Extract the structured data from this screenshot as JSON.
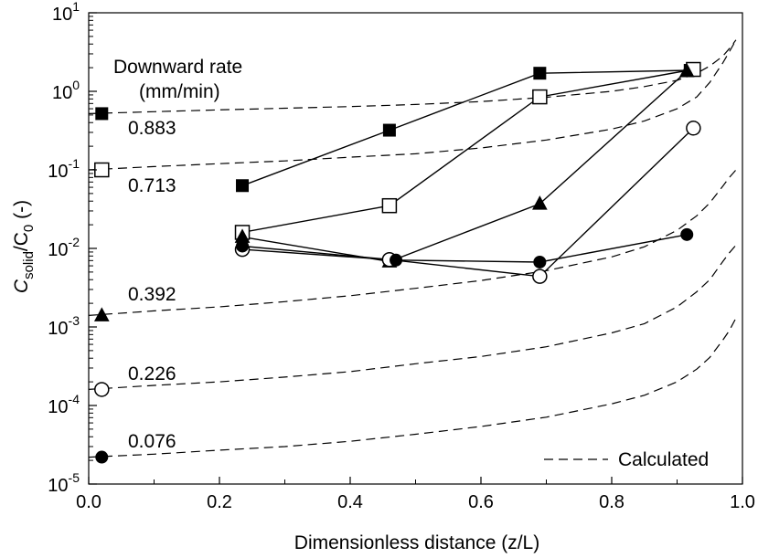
{
  "chart_data": {
    "type": "scatter",
    "title": "",
    "xlabel": "Dimensionless distance (z/L)",
    "ylabel": {
      "main": "C",
      "sub1": "solid",
      "sep": "/C",
      "sub2": "0",
      "unit": " (-)"
    },
    "xlim": [
      0.0,
      1.0
    ],
    "ylim_log10": [
      -5,
      1
    ],
    "y_scale": "log",
    "x_ticks": [
      0.0,
      0.2,
      0.4,
      0.6,
      0.8,
      1.0
    ],
    "x_tick_labels": [
      "0.0",
      "0.2",
      "0.4",
      "0.6",
      "0.8",
      "1.0"
    ],
    "y_tick_labels": [
      {
        "base": "10",
        "exp": "1"
      },
      {
        "base": "10",
        "exp": "0"
      },
      {
        "base": "10",
        "exp": "-1"
      },
      {
        "base": "10",
        "exp": "-2"
      },
      {
        "base": "10",
        "exp": "-3"
      },
      {
        "base": "10",
        "exp": "-4"
      },
      {
        "base": "10",
        "exp": "-5"
      }
    ],
    "group_title_line1": "Downward rate",
    "group_title_line2": "(mm/min)",
    "legend": {
      "calculated": "Calculated"
    },
    "series": [
      {
        "name": "0.883",
        "marker": "square-filled",
        "x": [
          0.02,
          0.235,
          0.46,
          0.69,
          0.92
        ],
        "y": [
          0.52,
          0.063,
          0.32,
          1.7,
          1.85
        ],
        "calc_x": [
          0.0,
          0.1,
          0.2,
          0.3,
          0.4,
          0.5,
          0.6,
          0.7,
          0.8,
          0.85,
          0.9,
          0.93,
          0.95,
          0.97,
          0.98,
          0.99
        ],
        "calc_y": [
          0.52,
          0.55,
          0.58,
          0.61,
          0.64,
          0.68,
          0.74,
          0.84,
          1.0,
          1.15,
          1.38,
          1.7,
          2.1,
          2.8,
          3.5,
          4.5
        ]
      },
      {
        "name": "0.713",
        "marker": "square-open",
        "x": [
          0.02,
          0.235,
          0.46,
          0.69,
          0.925
        ],
        "y": [
          0.1,
          0.016,
          0.035,
          0.85,
          1.9
        ],
        "calc_x": [
          0.0,
          0.1,
          0.2,
          0.3,
          0.4,
          0.5,
          0.6,
          0.7,
          0.8,
          0.85,
          0.9,
          0.93,
          0.95,
          0.97,
          0.98,
          0.99
        ],
        "calc_y": [
          0.1,
          0.11,
          0.12,
          0.13,
          0.145,
          0.16,
          0.19,
          0.24,
          0.33,
          0.42,
          0.6,
          0.85,
          1.3,
          2.3,
          3.2,
          4.5
        ]
      },
      {
        "name": "0.392",
        "marker": "triangle-filled",
        "x": [
          0.02,
          0.235,
          0.46,
          0.69,
          0.915
        ],
        "y": [
          0.0014,
          0.014,
          0.0068,
          0.037,
          1.8
        ],
        "calc_x": [
          0.0,
          0.1,
          0.2,
          0.3,
          0.4,
          0.5,
          0.6,
          0.7,
          0.8,
          0.85,
          0.9,
          0.93,
          0.95,
          0.97,
          0.98,
          0.99
        ],
        "calc_y": [
          0.0014,
          0.0016,
          0.0018,
          0.0021,
          0.0025,
          0.0031,
          0.0039,
          0.0052,
          0.0078,
          0.0105,
          0.017,
          0.026,
          0.038,
          0.062,
          0.08,
          0.1
        ]
      },
      {
        "name": "0.226",
        "marker": "circle-open",
        "x": [
          0.02,
          0.235,
          0.46,
          0.69,
          0.925
        ],
        "y": [
          0.00016,
          0.0097,
          0.0072,
          0.0044,
          0.34
        ],
        "calc_x": [
          0.0,
          0.1,
          0.2,
          0.3,
          0.4,
          0.5,
          0.6,
          0.7,
          0.8,
          0.85,
          0.9,
          0.93,
          0.95,
          0.97,
          0.98,
          0.99
        ],
        "calc_y": [
          0.00016,
          0.00018,
          0.0002,
          0.00023,
          0.00027,
          0.00034,
          0.00042,
          0.00056,
          0.00084,
          0.0011,
          0.0018,
          0.0028,
          0.004,
          0.0068,
          0.0088,
          0.011
        ]
      },
      {
        "name": "0.076",
        "marker": "circle-filled",
        "x": [
          0.02,
          0.235,
          0.47,
          0.69,
          0.915
        ],
        "y": [
          2.2e-05,
          0.0107,
          0.0071,
          0.0067,
          0.015
        ],
        "calc_x": [
          0.0,
          0.1,
          0.2,
          0.3,
          0.4,
          0.5,
          0.6,
          0.7,
          0.8,
          0.85,
          0.9,
          0.93,
          0.95,
          0.97,
          0.98,
          0.99
        ],
        "calc_y": [
          2.2e-05,
          2.4e-05,
          2.7e-05,
          3e-05,
          3.5e-05,
          4.3e-05,
          5.4e-05,
          7.1e-05,
          0.000105,
          0.000135,
          0.0002,
          0.00029,
          0.00041,
          0.00068,
          0.0009,
          0.0013
        ]
      }
    ]
  }
}
